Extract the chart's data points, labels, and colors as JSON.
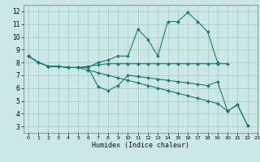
{
  "title": "",
  "xlabel": "Humidex (Indice chaleur)",
  "ylabel": "",
  "bg_color": "#cce8e6",
  "grid_color": "#aaccca",
  "line_color": "#1a7a6e",
  "xlim": [
    -0.5,
    23
  ],
  "ylim": [
    2.5,
    12.5
  ],
  "xticks": [
    0,
    1,
    2,
    3,
    4,
    5,
    6,
    7,
    8,
    9,
    10,
    11,
    12,
    13,
    14,
    15,
    16,
    17,
    18,
    19,
    20,
    21,
    22,
    23
  ],
  "yticks": [
    3,
    4,
    5,
    6,
    7,
    8,
    9,
    10,
    11,
    12
  ],
  "series": [
    {
      "x": [
        0,
        1,
        2,
        3,
        4,
        5,
        6,
        7,
        8,
        9,
        10,
        11,
        12,
        13,
        14,
        15,
        16,
        17,
        18,
        19
      ],
      "y": [
        8.5,
        8.0,
        7.7,
        7.7,
        7.6,
        7.6,
        7.6,
        8.0,
        8.2,
        8.5,
        8.5,
        10.6,
        9.8,
        8.5,
        11.2,
        11.2,
        11.9,
        11.2,
        10.4,
        8.0
      ]
    },
    {
      "x": [
        0,
        1,
        2,
        3,
        4,
        5,
        6,
        7,
        8,
        9,
        10,
        11,
        12,
        13,
        14,
        15,
        16,
        17,
        18,
        19,
        20,
        21,
        22
      ],
      "y": [
        8.5,
        8.0,
        7.7,
        7.7,
        7.6,
        7.6,
        7.6,
        6.1,
        5.8,
        6.2,
        7.0,
        6.9,
        6.8,
        6.7,
        6.6,
        6.5,
        6.4,
        6.3,
        6.2,
        6.5,
        4.2,
        4.7,
        3.1
      ]
    },
    {
      "x": [
        0,
        1,
        2,
        3,
        4,
        5,
        6,
        7,
        8,
        9,
        10,
        11,
        12,
        13,
        14,
        15,
        16,
        17,
        18,
        19,
        20
      ],
      "y": [
        8.5,
        8.0,
        7.7,
        7.7,
        7.6,
        7.6,
        7.7,
        7.8,
        7.9,
        7.9,
        7.9,
        7.9,
        7.9,
        7.9,
        7.9,
        7.9,
        7.9,
        7.9,
        7.9,
        7.9,
        7.9
      ]
    },
    {
      "x": [
        0,
        1,
        2,
        3,
        4,
        5,
        6,
        7,
        8,
        9,
        10,
        11,
        12,
        13,
        14,
        15,
        16,
        17,
        18,
        19,
        20,
        21,
        22
      ],
      "y": [
        8.5,
        8.0,
        7.7,
        7.7,
        7.6,
        7.6,
        7.4,
        7.2,
        7.0,
        6.8,
        6.6,
        6.4,
        6.2,
        6.0,
        5.8,
        5.6,
        5.4,
        5.2,
        5.0,
        4.8,
        4.2,
        4.7,
        3.1
      ]
    }
  ],
  "xlabel_fontsize": 6.0,
  "xtick_fontsize": 4.5,
  "ytick_fontsize": 5.5
}
